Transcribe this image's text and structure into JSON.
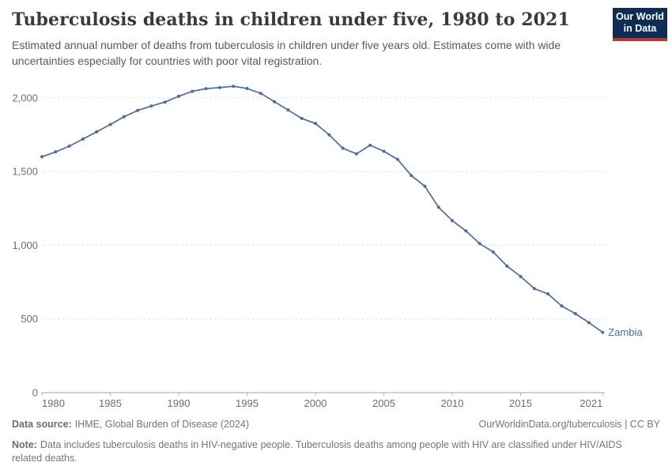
{
  "header": {
    "title": "Tuberculosis deaths in children under five, 1980 to 2021",
    "subtitle": "Estimated annual number of deaths from tuberculosis in children under five years old. Estimates come with wide uncertainties especially for countries with poor vital registration.",
    "logo": {
      "line1": "Our World",
      "line2": "in Data",
      "bg_color": "#0d2d55",
      "stripe_color": "#c4302b"
    }
  },
  "footer": {
    "datasource_label": "Data source:",
    "datasource_text": "IHME, Global Burden of Disease (2024)",
    "link_text": "OurWorldinData.org/tuberculosis | CC BY",
    "note_label": "Note:",
    "note_text": "Data includes tuberculosis deaths in HIV-negative people. Tuberculosis deaths among people with HIV are classified under HIV/AIDS related deaths."
  },
  "chart_data": {
    "type": "line",
    "title": "Tuberculosis deaths in children under five, 1980 to 2021",
    "xlabel": "",
    "ylabel": "",
    "xlim": [
      1980,
      2021
    ],
    "ylim": [
      0,
      2150
    ],
    "grid": "horizontal-dashed",
    "legend_position": "end-of-line-label",
    "line_color": "#4c6ba0",
    "axis_color": "#a3a3a3",
    "grid_color": "#e0e0e0",
    "x": [
      1980,
      1981,
      1982,
      1983,
      1984,
      1985,
      1986,
      1987,
      1988,
      1989,
      1990,
      1991,
      1992,
      1993,
      1994,
      1995,
      1996,
      1997,
      1998,
      1999,
      2000,
      2001,
      2002,
      2003,
      2004,
      2005,
      2006,
      2007,
      2008,
      2009,
      2010,
      2011,
      2012,
      2013,
      2014,
      2015,
      2016,
      2017,
      2018,
      2019,
      2020,
      2021
    ],
    "series": [
      {
        "name": "Zambia",
        "values": [
          1600,
          1633,
          1672,
          1720,
          1769,
          1819,
          1871,
          1914,
          1944,
          1971,
          2010,
          2044,
          2062,
          2069,
          2078,
          2063,
          2030,
          1974,
          1917,
          1860,
          1826,
          1749,
          1658,
          1620,
          1678,
          1637,
          1583,
          1473,
          1400,
          1258,
          1167,
          1097,
          1011,
          954,
          859,
          788,
          706,
          670,
          588,
          536,
          475,
          409
        ]
      }
    ],
    "yticks": [
      0,
      500,
      1000,
      1500,
      2000
    ],
    "ytick_labels": [
      "0",
      "500",
      "1,000",
      "1,500",
      "2,000"
    ],
    "xticks": [
      1980,
      1985,
      1990,
      1995,
      2000,
      2005,
      2010,
      2015,
      2021
    ],
    "xtick_labels": [
      "1980",
      "1985",
      "1990",
      "1995",
      "2000",
      "2005",
      "2010",
      "2015",
      "2021"
    ]
  }
}
